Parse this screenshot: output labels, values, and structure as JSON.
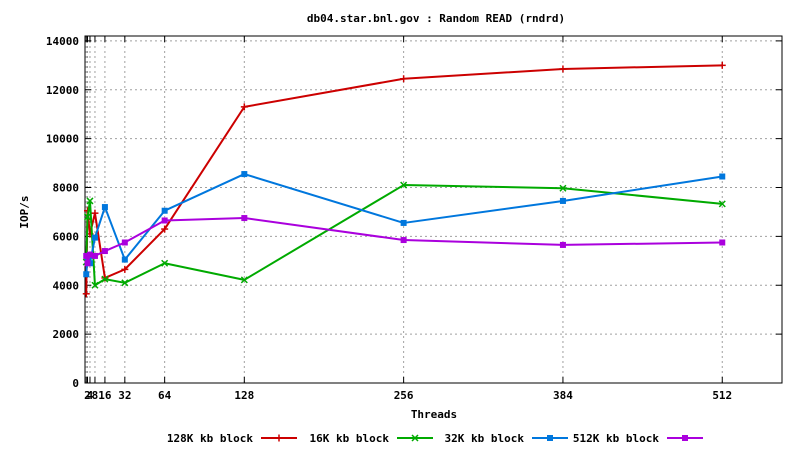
{
  "chart_data": {
    "type": "line",
    "title": "db04.star.bnl.gov : Random READ (rndrd)",
    "xlabel": "Threads",
    "ylabel": "IOP/s",
    "xlim": [
      0,
      560
    ],
    "ylim": [
      0,
      14200
    ],
    "x_ticks": [
      1,
      2,
      4,
      8,
      16,
      32,
      64,
      128,
      256,
      384,
      512
    ],
    "x_tick_labels": [
      "",
      "2",
      "4",
      "8",
      "16",
      "32",
      "64",
      "128",
      "256",
      "384",
      "512"
    ],
    "y_ticks": [
      0,
      2000,
      4000,
      6000,
      8000,
      10000,
      12000,
      14000
    ],
    "y_tick_labels": [
      "0",
      "2000",
      "4000",
      "6000",
      "8000",
      "10000",
      "12000",
      "14000"
    ],
    "grid": true,
    "legend_position": "bottom",
    "x": [
      1,
      2,
      4,
      8,
      16,
      32,
      64,
      128,
      256,
      384,
      512
    ],
    "series": [
      {
        "name": "128K kb block",
        "color": "#cc0000",
        "marker": "plus",
        "values": [
          3650,
          7050,
          6100,
          6950,
          4300,
          4650,
          6300,
          11300,
          12450,
          12850,
          13000
        ]
      },
      {
        "name": "16K kb block",
        "color": "#00aa00",
        "marker": "cross",
        "values": [
          4950,
          6800,
          7450,
          4000,
          4250,
          4100,
          4900,
          4220,
          8100,
          7970,
          7330
        ]
      },
      {
        "name": "32K kb block",
        "color": "#0077dd",
        "marker": "square",
        "values": [
          4450,
          5150,
          4900,
          5950,
          7200,
          5050,
          7050,
          8550,
          6550,
          7450,
          8450
        ]
      },
      {
        "name": "512K kb block",
        "color": "#aa00dd",
        "marker": "square",
        "values": [
          5200,
          4900,
          5250,
          5200,
          5400,
          5750,
          6650,
          6750,
          5850,
          5650,
          5750
        ]
      }
    ]
  }
}
